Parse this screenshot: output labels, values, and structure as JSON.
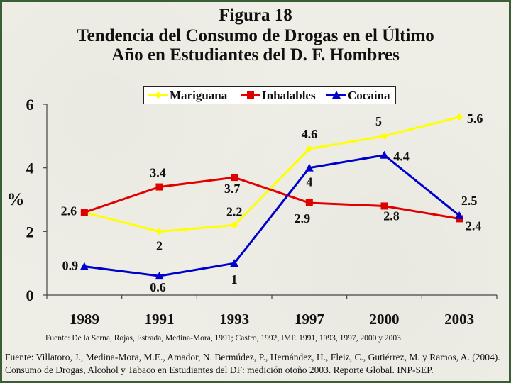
{
  "title": {
    "line1": "Figura 18",
    "line2": "Tendencia del Consumo de Drogas en el Último",
    "line3": "Año en Estudiantes del D. F.  Hombres"
  },
  "footnote_short": "Fuente: De la Serna, Rojas, Estrada, Medina-Mora, 1991; Castro, 1992, IMP. 1991, 1993, 1997, 2000 y 2003.",
  "footnote_full": "Fuente: Villatoro, J., Medina-Mora, M.E., Amador, N. Bermúdez, P., Hernández, H., Fleiz, C., Gutiérrez, M. y Ramos, A. (2004). Consumo de Drogas, Alcohol y Tabaco en Estudiantes del DF: medición otoño 2003. Reporte Global. INP-SEP.",
  "chart_data": {
    "type": "line",
    "categories": [
      "1989",
      "1991",
      "1993",
      "1997",
      "2000",
      "2003"
    ],
    "ylabel": "%",
    "ylim": [
      0,
      6
    ],
    "yticks": [
      "0",
      "2",
      "4",
      "6"
    ],
    "legend_position": "top",
    "grid": false,
    "series": [
      {
        "name": "Mariguana",
        "color": "#ffff00",
        "marker": "diamond",
        "values": [
          2.6,
          2,
          2.2,
          4.6,
          5,
          5.6
        ],
        "labels": [
          "",
          "2",
          "2.2",
          "4.6",
          "5",
          "5.6"
        ]
      },
      {
        "name": "Inhalables",
        "color": "#e00000",
        "marker": "square",
        "values": [
          2.6,
          3.4,
          3.7,
          2.9,
          2.8,
          2.4
        ],
        "labels": [
          "2.6",
          "3.4",
          "3.7",
          "2.9",
          "2.8",
          "2.4"
        ]
      },
      {
        "name": "Cocaína",
        "color": "#0000cc",
        "marker": "triangle",
        "values": [
          0.9,
          0.6,
          1,
          4,
          4.4,
          2.5
        ],
        "labels": [
          "0.9",
          "0.6",
          "1",
          "4",
          "4.4",
          "2.5"
        ]
      }
    ]
  }
}
